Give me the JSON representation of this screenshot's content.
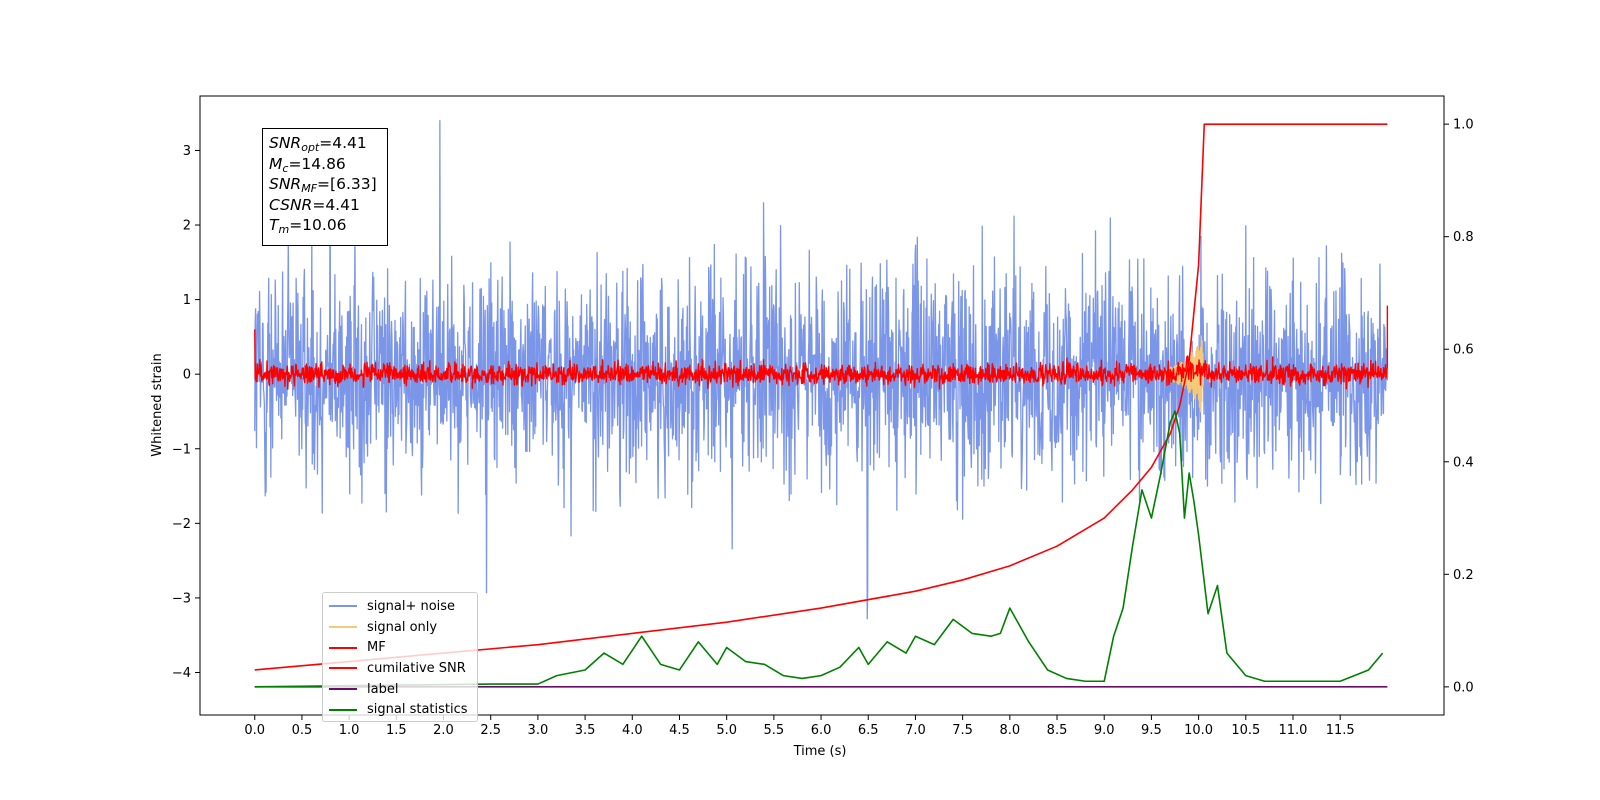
{
  "info_box": {
    "snr_opt": {
      "main": "SNR",
      "sub": "opt",
      "value": "=4.41"
    },
    "mc": {
      "main": "M",
      "sub": "c",
      "value": "=14.86"
    },
    "snr_mf": {
      "main": "SNR",
      "sub": "MF",
      "value": "=[6.33]"
    },
    "csnr": {
      "main": "CSNR",
      "value": "=4.41"
    },
    "tm": {
      "main": "T",
      "sub": "m",
      "value": "=10.06"
    }
  },
  "legend": [
    {
      "label": "signal+ noise",
      "color": "#7b96e8"
    },
    {
      "label": "signal only",
      "color": "#f5c97a"
    },
    {
      "label": "MF",
      "color": "#ff0000"
    },
    {
      "label": "cumilative SNR",
      "color": "#ff0000"
    },
    {
      "label": "label",
      "color": "#6a0d6a"
    },
    {
      "label": "signal statistics",
      "color": "#008000"
    }
  ],
  "chart_data": {
    "type": "line",
    "xlabel": "Time (s)",
    "ylabel": "Whitened strain",
    "xlim": [
      -0.58,
      12.6
    ],
    "ylim": [
      -4.57,
      3.73
    ],
    "ylim_right": [
      -0.05,
      1.05
    ],
    "x_ticks": [
      "0.0",
      "0.5",
      "1.0",
      "1.5",
      "2.0",
      "2.5",
      "3.0",
      "3.5",
      "4.0",
      "4.5",
      "5.0",
      "5.5",
      "6.0",
      "6.5",
      "7.0",
      "7.5",
      "8.0",
      "8.5",
      "9.0",
      "9.5",
      "10.0",
      "10.5",
      "11.0",
      "11.5"
    ],
    "y_ticks_left": [
      "3",
      "2",
      "1",
      "0",
      "−1",
      "−2",
      "−3",
      "−4"
    ],
    "y_ticks_right": [
      "1.0",
      "0.8",
      "0.6",
      "0.4",
      "0.2",
      "0.0"
    ],
    "series": [
      {
        "name": "signal+ noise",
        "axis": "left",
        "description_range": [
          -3.5,
          3.4
        ],
        "color": "#7b96e8"
      },
      {
        "name": "signal only",
        "axis": "left",
        "color": "#f5c97a",
        "x": [
          9.6,
          9.7,
          9.8,
          9.9,
          10.0,
          10.03,
          10.06
        ],
        "y": [
          0.05,
          0.1,
          0.15,
          0.25,
          0.4,
          0.6,
          0.0
        ]
      },
      {
        "name": "MF",
        "axis": "left",
        "color": "#ff0000",
        "description_range": [
          -0.25,
          0.6
        ]
      },
      {
        "name": "cumilative SNR",
        "axis": "right",
        "color": "#ff0000",
        "x": [
          0.0,
          1.0,
          2.0,
          3.0,
          4.0,
          5.0,
          6.0,
          7.0,
          7.5,
          8.0,
          8.5,
          9.0,
          9.3,
          9.5,
          9.7,
          9.8,
          9.9,
          10.0,
          10.06,
          11.0,
          12.0
        ],
        "y": [
          0.03,
          0.045,
          0.06,
          0.075,
          0.095,
          0.115,
          0.14,
          0.17,
          0.19,
          0.215,
          0.25,
          0.3,
          0.35,
          0.39,
          0.45,
          0.5,
          0.58,
          0.75,
          1.0,
          1.0,
          1.0
        ]
      },
      {
        "name": "label",
        "axis": "right",
        "color": "#6a0d6a",
        "x": [
          0.0,
          12.0
        ],
        "y": [
          0.0,
          0.0
        ]
      },
      {
        "name": "signal statistics",
        "axis": "right",
        "color": "#008000",
        "x": [
          0.0,
          2.5,
          3.0,
          3.2,
          3.5,
          3.7,
          3.9,
          4.0,
          4.1,
          4.3,
          4.5,
          4.7,
          4.9,
          5.0,
          5.2,
          5.4,
          5.6,
          5.8,
          6.0,
          6.2,
          6.4,
          6.5,
          6.7,
          6.9,
          7.0,
          7.2,
          7.4,
          7.6,
          7.8,
          7.9,
          8.0,
          8.2,
          8.4,
          8.6,
          8.8,
          9.0,
          9.1,
          9.2,
          9.3,
          9.4,
          9.5,
          9.6,
          9.7,
          9.75,
          9.8,
          9.85,
          9.9,
          9.95,
          10.0,
          10.1,
          10.2,
          10.3,
          10.5,
          10.7,
          11.0,
          11.3,
          11.5,
          11.8,
          11.95
        ],
        "y": [
          0.0,
          0.005,
          0.005,
          0.02,
          0.03,
          0.06,
          0.04,
          0.065,
          0.09,
          0.04,
          0.03,
          0.08,
          0.04,
          0.07,
          0.045,
          0.04,
          0.02,
          0.015,
          0.02,
          0.035,
          0.07,
          0.04,
          0.08,
          0.06,
          0.09,
          0.075,
          0.12,
          0.095,
          0.09,
          0.095,
          0.14,
          0.08,
          0.03,
          0.015,
          0.01,
          0.01,
          0.09,
          0.14,
          0.25,
          0.35,
          0.3,
          0.38,
          0.47,
          0.49,
          0.45,
          0.3,
          0.38,
          0.33,
          0.27,
          0.13,
          0.18,
          0.06,
          0.02,
          0.01,
          0.01,
          0.01,
          0.01,
          0.03,
          0.06
        ]
      }
    ]
  }
}
